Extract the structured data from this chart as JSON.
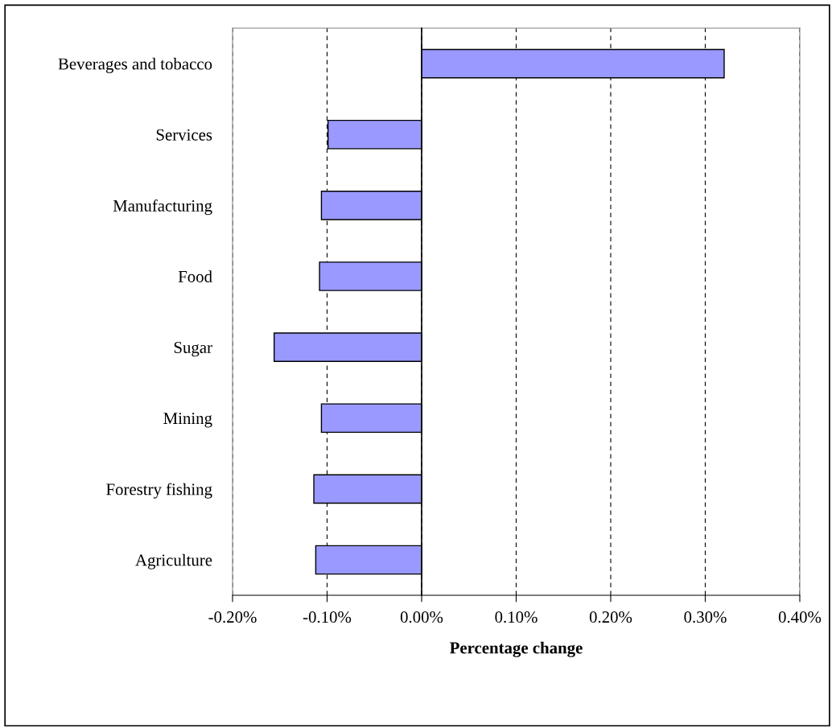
{
  "chart_data": {
    "type": "bar",
    "orientation": "horizontal",
    "xlabel": "Percentage change",
    "categories": [
      "Beverages and tobacco",
      "Services",
      "Manufacturing",
      "Food",
      "Sugar",
      "Mining",
      "Forestry fishing",
      "Agriculture"
    ],
    "values": [
      0.32,
      -0.099,
      -0.106,
      -0.108,
      -0.156,
      -0.106,
      -0.114,
      -0.112
    ],
    "color": "#9999ff",
    "xlim": [
      -0.2,
      0.4
    ],
    "xticks": [
      {
        "value": -0.2,
        "label": "-0.20%"
      },
      {
        "value": -0.1,
        "label": "-0.10%"
      },
      {
        "value": 0.0,
        "label": "0.00%"
      },
      {
        "value": 0.1,
        "label": "0.10%"
      },
      {
        "value": 0.2,
        "label": "0.20%"
      },
      {
        "value": 0.3,
        "label": "0.30%"
      },
      {
        "value": 0.4,
        "label": "0.40%"
      }
    ],
    "grid": "x",
    "legend": false
  }
}
